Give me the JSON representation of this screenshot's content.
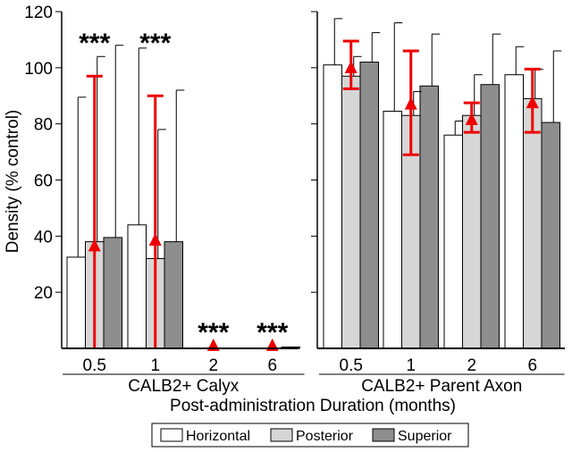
{
  "chart_data": {
    "type": "bar",
    "title": "",
    "ylabel": "Density (% control)",
    "xlabel": "Post-administration Duration (months)",
    "ylim": [
      0,
      120
    ],
    "yticks": [
      20,
      40,
      60,
      80,
      100,
      120
    ],
    "y_tick_labels": [
      "20",
      "40",
      "60",
      "80",
      "100",
      "120"
    ],
    "groups": [
      {
        "label": "CALB2+ Calyx",
        "categories": [
          {
            "label": "0.5",
            "values": [
              32.5,
              38.0,
              39.5
            ],
            "errors": [
              89.5,
              104.0,
              108.0
            ],
            "triangle": 36.5,
            "tri_err": [
              0,
              97.0
            ],
            "sig": "***"
          },
          {
            "label": "1",
            "values": [
              44.0,
              32.0,
              38.0
            ],
            "errors": [
              107.0,
              78.0,
              92.0
            ],
            "triangle": 38.5,
            "tri_err": [
              0,
              90.0
            ],
            "sig": "***"
          },
          {
            "label": "2",
            "values": [
              0.0,
              0.0,
              0.0
            ],
            "errors": [
              0.0,
              0.0,
              0.0
            ],
            "triangle": 1.0,
            "tri_err": [
              1.0,
              1.0
            ],
            "sig": "***"
          },
          {
            "label": "6",
            "values": [
              0.0,
              0.0,
              0.5
            ],
            "errors": [
              0.0,
              0.0,
              0.5
            ],
            "triangle": 1.0,
            "tri_err": [
              1.0,
              1.0
            ],
            "sig": "***"
          }
        ]
      },
      {
        "label": "CALB2+ Parent Axon",
        "categories": [
          {
            "label": "0.5",
            "values": [
              101.0,
              97.0,
              102.0
            ],
            "errors": [
              117.5,
              104.0,
              112.5
            ],
            "triangle": 100.0,
            "tri_err": [
              92.5,
              109.5
            ],
            "sig": ""
          },
          {
            "label": "1",
            "values": [
              84.5,
              83.0,
              93.5
            ],
            "errors": [
              116.0,
              91.5,
              112.0
            ],
            "triangle": 87.0,
            "tri_err": [
              69.0,
              106.0
            ],
            "sig": ""
          },
          {
            "label": "2",
            "values": [
              76.0,
              83.0,
              94.0
            ],
            "errors": [
              81.0,
              97.5,
              112.0
            ],
            "triangle": 81.5,
            "tri_err": [
              77.0,
              87.5
            ],
            "sig": ""
          },
          {
            "label": "6",
            "values": [
              97.5,
              89.0,
              80.5
            ],
            "errors": [
              107.5,
              99.5,
              106.0
            ],
            "triangle": 87.5,
            "tri_err": [
              77.0,
              99.5
            ],
            "sig": ""
          }
        ]
      }
    ],
    "series": [
      {
        "name": "Horizontal",
        "color": "#ffffff"
      },
      {
        "name": "Posterior",
        "color": "#d6d6d6"
      },
      {
        "name": "Superior",
        "color": "#8e8e8e"
      }
    ],
    "triangle_color": "#ee0000",
    "legend_position": "bottom-center"
  }
}
